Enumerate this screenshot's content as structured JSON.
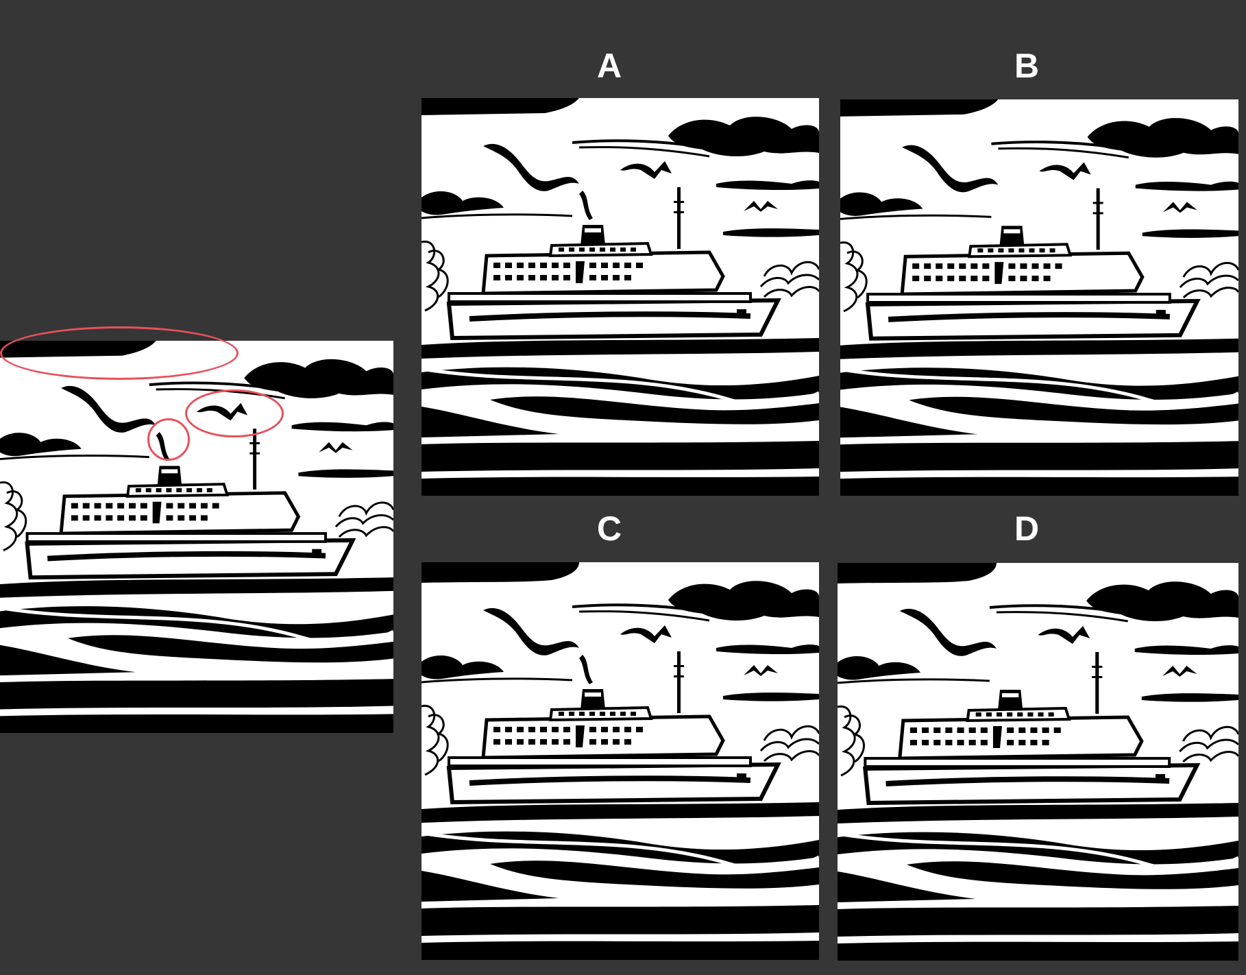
{
  "puzzle": {
    "reference_icon": "ship-scene-image",
    "marker_color": "#e8505b",
    "background_color": "#363636",
    "options": [
      {
        "id": "a",
        "label": "A",
        "variant": "match"
      },
      {
        "id": "b",
        "label": "B",
        "variant": "no-smoke"
      },
      {
        "id": "c",
        "label": "C",
        "variant": "full-cloud"
      },
      {
        "id": "d",
        "label": "D",
        "variant": "no-cloud"
      }
    ]
  }
}
